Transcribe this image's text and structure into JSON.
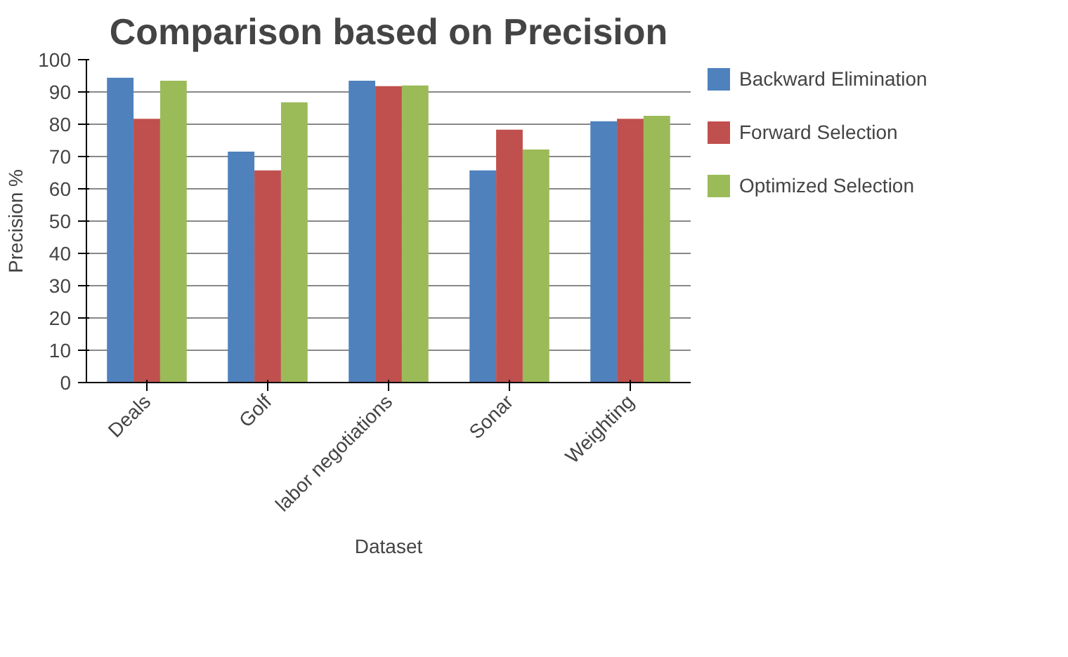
{
  "chart_data": {
    "type": "bar",
    "title": "Comparison based on Precision",
    "xlabel": "Dataset",
    "ylabel": "Precision %",
    "categories": [
      "Deals",
      "Golf",
      "labor negotiations",
      "Sonar",
      "Weighting"
    ],
    "series": [
      {
        "name": "Backward Elimination",
        "color": "#4f81bd",
        "values": [
          94.4,
          71.5,
          93.5,
          65.7,
          80.9
        ]
      },
      {
        "name": "Forward Selection",
        "color": "#c0504d",
        "values": [
          81.7,
          65.7,
          91.8,
          78.3,
          81.7
        ]
      },
      {
        "name": "Optimized Selection",
        "color": "#9bbb59",
        "values": [
          93.5,
          86.8,
          92,
          72.2,
          82.6
        ]
      }
    ],
    "ylim": [
      0,
      100
    ],
    "yticks": [
      0,
      10,
      20,
      30,
      40,
      50,
      60,
      70,
      80,
      90,
      100
    ],
    "grid": "y",
    "legend": "right"
  }
}
